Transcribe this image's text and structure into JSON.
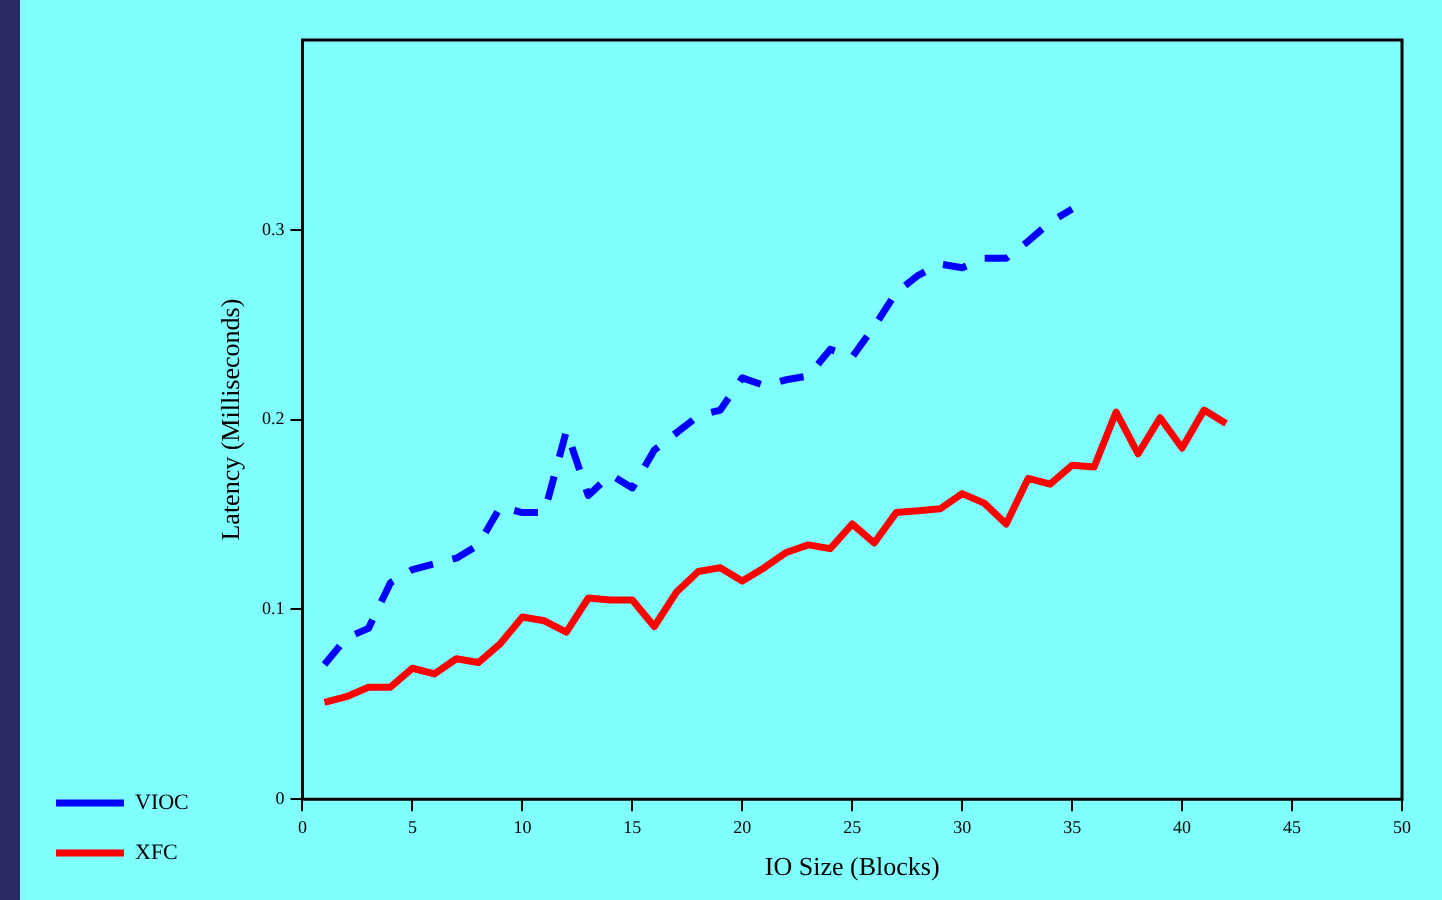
{
  "chart_data": {
    "type": "line",
    "xlabel": "IO Size (Blocks)",
    "ylabel": "Latency (Milliseconds)",
    "xlim": [
      0,
      50
    ],
    "xticks": [
      0,
      5,
      10,
      15,
      20,
      25,
      30,
      35,
      40,
      45,
      50
    ],
    "ylim": [
      0,
      0.4
    ],
    "yticks": [
      0,
      0.1,
      0.2,
      0.3
    ],
    "grid": false,
    "legend": "left",
    "marker": "none",
    "series": [
      {
        "name": "VIOC",
        "color": "#0000ff",
        "line_style": "dashed",
        "x": [
          1,
          2,
          3,
          4,
          5,
          6,
          7,
          8,
          9,
          10,
          11,
          12,
          13,
          14,
          15,
          16,
          17,
          18,
          19,
          20,
          21,
          22,
          23,
          24,
          25,
          26,
          27,
          28,
          29,
          30,
          31,
          32,
          33,
          34,
          35
        ],
        "values": [
          0.071,
          0.085,
          0.09,
          0.114,
          0.121,
          0.124,
          0.127,
          0.134,
          0.154,
          0.151,
          0.151,
          0.194,
          0.16,
          0.171,
          0.164,
          0.184,
          0.193,
          0.202,
          0.205,
          0.222,
          0.218,
          0.221,
          0.223,
          0.237,
          0.233,
          0.249,
          0.267,
          0.276,
          0.282,
          0.28,
          0.285,
          0.285,
          0.294,
          0.304,
          0.311
        ]
      },
      {
        "name": "XFC",
        "color": "#ff0000",
        "line_style": "solid",
        "x": [
          1,
          2,
          3,
          4,
          5,
          6,
          7,
          8,
          9,
          10,
          11,
          12,
          13,
          14,
          15,
          16,
          17,
          18,
          19,
          20,
          21,
          22,
          23,
          24,
          25,
          26,
          27,
          28,
          29,
          30,
          31,
          32,
          33,
          34,
          35,
          36,
          37,
          38,
          39,
          40,
          41,
          42
        ],
        "values": [
          0.051,
          0.054,
          0.059,
          0.059,
          0.069,
          0.066,
          0.074,
          0.072,
          0.082,
          0.096,
          0.094,
          0.088,
          0.106,
          0.105,
          0.105,
          0.091,
          0.109,
          0.12,
          0.122,
          0.115,
          0.122,
          0.13,
          0.134,
          0.132,
          0.145,
          0.135,
          0.151,
          0.152,
          0.153,
          0.161,
          0.156,
          0.145,
          0.169,
          0.166,
          0.176,
          0.175,
          0.204,
          0.182,
          0.201,
          0.185,
          0.205,
          0.198
        ]
      }
    ]
  }
}
